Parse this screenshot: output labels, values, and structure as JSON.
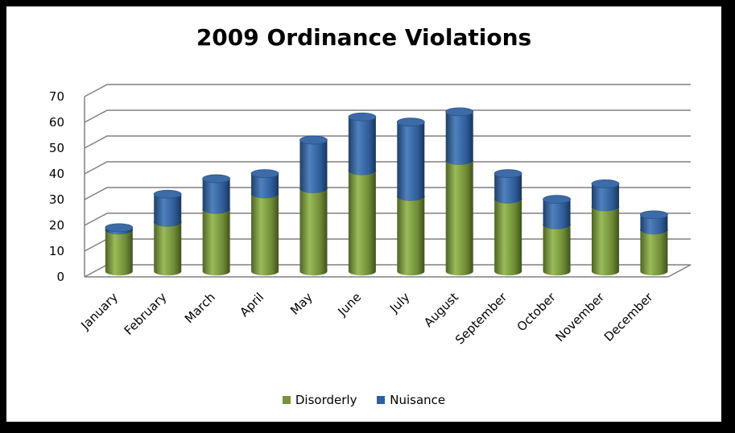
{
  "chart_data": {
    "type": "bar",
    "stacked": true,
    "style": "3d-cylinder",
    "title": "2009 Ordinance Violations",
    "categories": [
      "January",
      "February",
      "March",
      "April",
      "May",
      "June",
      "July",
      "August",
      "September",
      "October",
      "November",
      "December"
    ],
    "series": [
      {
        "name": "Disorderly",
        "color": "#77933C",
        "values": [
          16,
          19,
          24,
          30,
          32,
          39,
          29,
          43,
          28,
          18,
          25,
          16
        ]
      },
      {
        "name": "Nuisance",
        "color": "#2F5E9E",
        "values": [
          1,
          11,
          12,
          8,
          19,
          21,
          29,
          19,
          10,
          10,
          9,
          6
        ]
      }
    ],
    "ylim": [
      0,
      70
    ],
    "yticks": [
      0,
      10,
      20,
      30,
      40,
      50,
      60,
      70
    ],
    "grid": true,
    "legend": "bottom"
  }
}
